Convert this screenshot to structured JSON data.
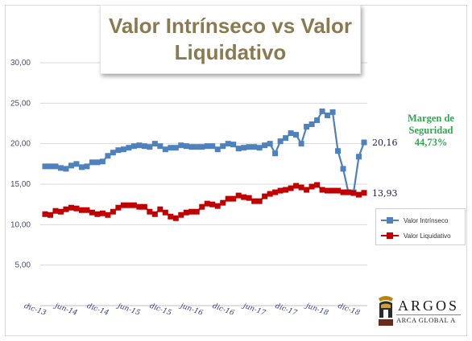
{
  "title_line1": "Valor Intrínseco vs Valor",
  "title_line2": "Liquidativo",
  "annotation": {
    "line1": "Margen de",
    "line2": "Seguridad",
    "line3": "44,73%"
  },
  "end_labels": {
    "intrinsic": "20,16",
    "liquidative": "13,93"
  },
  "logo": {
    "name": "ARGOS",
    "subtitle": "ARCA GLOBAL A"
  },
  "chart_data": {
    "type": "line",
    "title": "Valor Intrínseco vs Valor Liquidativo",
    "ylim": [
      0,
      30
    ],
    "y_ticks": [
      "-",
      "5,00",
      "10,00",
      "15,00",
      "20,00",
      "25,00",
      "30,00"
    ],
    "x_tick_labels": [
      "dic-13",
      "jun-14",
      "dic-14",
      "jun-15",
      "dic-15",
      "jun-16",
      "dic-16",
      "jun-17",
      "dic-17",
      "jun-18",
      "dic-18"
    ],
    "x_tick_indices": [
      0,
      6,
      12,
      18,
      24,
      30,
      36,
      42,
      48,
      54,
      60
    ],
    "legend_position": "right",
    "grid": true,
    "series": [
      {
        "name": "Valor Intrínseco",
        "color": "#4f81bd",
        "values": [
          17.2,
          17.2,
          17.2,
          17.0,
          16.9,
          17.3,
          17.5,
          17.1,
          17.2,
          17.7,
          17.7,
          17.8,
          18.5,
          18.9,
          19.2,
          19.3,
          19.5,
          19.7,
          19.8,
          19.7,
          19.6,
          20.0,
          19.7,
          19.3,
          19.5,
          19.5,
          19.8,
          19.7,
          19.6,
          19.6,
          19.6,
          19.7,
          19.7,
          19.3,
          19.7,
          20.0,
          19.9,
          19.4,
          19.5,
          19.6,
          19.6,
          19.5,
          19.8,
          20.0,
          18.8,
          20.3,
          20.7,
          21.3,
          21.1,
          20.0,
          22.1,
          22.4,
          22.9,
          24.0,
          23.5,
          23.9,
          19.1,
          16.9,
          14.0,
          14.0,
          18.4,
          20.16
        ]
      },
      {
        "name": "Valor Liquidativo",
        "color": "#c00000",
        "values": [
          11.3,
          11.2,
          11.7,
          11.6,
          11.9,
          12.1,
          12.0,
          11.8,
          11.8,
          11.5,
          11.3,
          11.4,
          11.2,
          11.6,
          12.1,
          12.4,
          12.4,
          12.4,
          12.2,
          12.2,
          11.6,
          11.3,
          11.9,
          11.5,
          11.0,
          10.8,
          11.2,
          11.5,
          11.6,
          11.6,
          12.2,
          12.6,
          12.5,
          12.3,
          12.7,
          13.2,
          13.2,
          13.6,
          13.4,
          13.3,
          12.9,
          12.9,
          13.5,
          13.8,
          14.0,
          14.2,
          14.3,
          14.5,
          14.8,
          14.6,
          14.3,
          14.7,
          14.9,
          14.3,
          14.2,
          14.2,
          14.2,
          14.0,
          14.0,
          13.9,
          13.7,
          13.93
        ]
      }
    ]
  }
}
